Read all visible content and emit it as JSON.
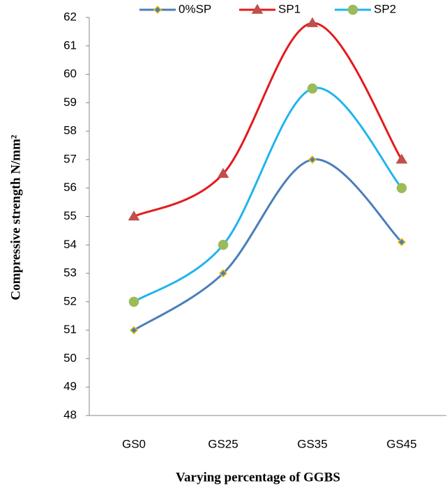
{
  "chart_data": {
    "type": "line",
    "smooth": true,
    "categories": [
      "GS0",
      "GS25",
      "GS35",
      "GS45"
    ],
    "series": [
      {
        "name": "0%SP",
        "color": "#4a7ebb",
        "marker": "diamond",
        "marker_color": "#4a7ebb",
        "marker_edge": "#f2c200",
        "values": [
          51,
          53,
          57,
          54.1
        ]
      },
      {
        "name": "SP1",
        "color": "#e41a1c",
        "marker": "triangle",
        "marker_color": "#c0504d",
        "marker_edge": "#c0504d",
        "values": [
          55,
          56.5,
          61.8,
          57
        ]
      },
      {
        "name": "SP2",
        "color": "#1fb4ef",
        "marker": "circle",
        "marker_color": "#9bbb59",
        "marker_edge": "#9bbb59",
        "values": [
          52,
          54,
          59.5,
          56
        ]
      }
    ],
    "ylim": [
      48,
      62
    ],
    "yticks": [
      48,
      49,
      50,
      51,
      52,
      53,
      54,
      55,
      56,
      57,
      58,
      59,
      60,
      61,
      62
    ],
    "ylabel": "Compressive strength N/mm²",
    "xlabel": "Varying percentage of GGBS",
    "legend": "top",
    "grid": false
  }
}
